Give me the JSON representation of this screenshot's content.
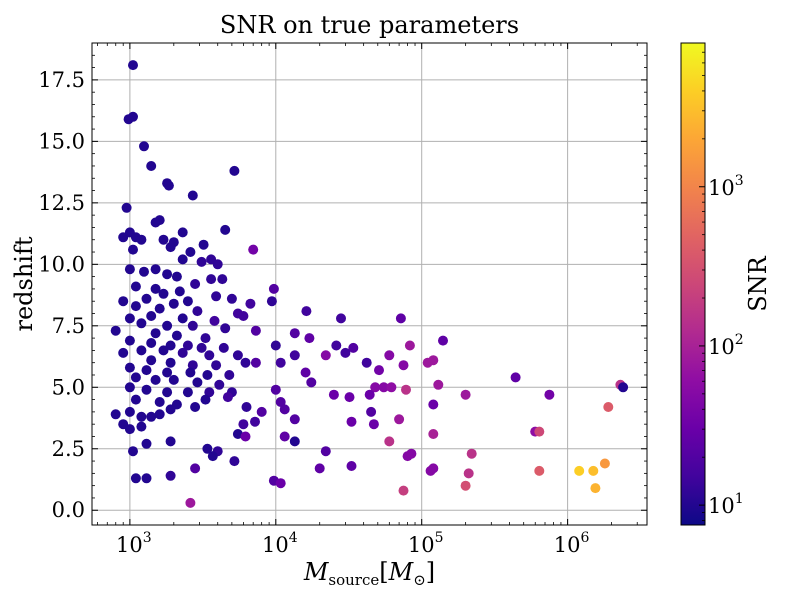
{
  "chart_data": {
    "type": "scatter",
    "title": "SNR on true parameters",
    "xlabel": {
      "base": "M",
      "subscript": "source",
      "bracket_open": "[",
      "unit_base": "M",
      "unit_subscript": "⊙",
      "bracket_close": "]"
    },
    "ylabel": "redshift",
    "x_scale": "log",
    "xlim": [
      550,
      3500000
    ],
    "ylim": [
      -0.6,
      19.0
    ],
    "x_ticks": [
      {
        "value": 1000,
        "base": "10",
        "exp": "3"
      },
      {
        "value": 10000,
        "base": "10",
        "exp": "4"
      },
      {
        "value": 100000,
        "base": "10",
        "exp": "5"
      },
      {
        "value": 1000000,
        "base": "10",
        "exp": "6"
      }
    ],
    "y_ticks": [
      {
        "value": 0,
        "label": "0.0"
      },
      {
        "value": 2.5,
        "label": "2.5"
      },
      {
        "value": 5,
        "label": "5.0"
      },
      {
        "value": 7.5,
        "label": "7.5"
      },
      {
        "value": 10,
        "label": "10.0"
      },
      {
        "value": 12.5,
        "label": "12.5"
      },
      {
        "value": 15,
        "label": "15.0"
      },
      {
        "value": 17.5,
        "label": "17.5"
      }
    ],
    "grid": true,
    "colorbar": {
      "label": "SNR",
      "scale": "log",
      "range": [
        7.5,
        8000
      ],
      "colormap": "plasma",
      "colors": [
        "#0d0887",
        "#41049d",
        "#6a00a8",
        "#8f0da4",
        "#b12a90",
        "#cc4778",
        "#e16462",
        "#f2844b",
        "#fca636",
        "#fcce25",
        "#f0f921"
      ],
      "ticks": [
        {
          "value": 10,
          "base": "10",
          "exp": "1"
        },
        {
          "value": 100,
          "base": "10",
          "exp": "2"
        },
        {
          "value": 1000,
          "base": "10",
          "exp": "3"
        }
      ]
    },
    "points": [
      [
        1050,
        18.1,
        10
      ],
      [
        1050,
        16.0,
        10
      ],
      [
        980,
        15.9,
        10
      ],
      [
        1250,
        14.8,
        10
      ],
      [
        1400,
        14.0,
        10
      ],
      [
        5200,
        13.8,
        10
      ],
      [
        1800,
        13.3,
        10
      ],
      [
        1850,
        13.2,
        10
      ],
      [
        2700,
        12.8,
        10
      ],
      [
        950,
        12.3,
        10
      ],
      [
        1600,
        11.8,
        10
      ],
      [
        1500,
        11.7,
        10
      ],
      [
        4500,
        11.4,
        10
      ],
      [
        2300,
        11.3,
        10
      ],
      [
        1000,
        11.3,
        10
      ],
      [
        1100,
        11.1,
        10
      ],
      [
        900,
        11.1,
        10
      ],
      [
        1200,
        11.0,
        10
      ],
      [
        1700,
        11.0,
        10
      ],
      [
        2000,
        10.9,
        10
      ],
      [
        3200,
        10.8,
        10
      ],
      [
        1900,
        10.7,
        10
      ],
      [
        1050,
        10.6,
        10
      ],
      [
        2600,
        10.5,
        10
      ],
      [
        7000,
        10.6,
        35
      ],
      [
        2300,
        10.2,
        10
      ],
      [
        3600,
        10.2,
        12
      ],
      [
        3100,
        10.1,
        12
      ],
      [
        4000,
        10.0,
        12
      ],
      [
        9700,
        9.0,
        20
      ],
      [
        1500,
        9.8,
        10
      ],
      [
        1000,
        9.8,
        10
      ],
      [
        1250,
        9.7,
        10
      ],
      [
        1800,
        9.6,
        10
      ],
      [
        2100,
        9.5,
        10
      ],
      [
        3600,
        9.4,
        12
      ],
      [
        4300,
        9.4,
        12
      ],
      [
        2800,
        9.2,
        12
      ],
      [
        1100,
        9.1,
        10
      ],
      [
        1500,
        9.0,
        10
      ],
      [
        2200,
        8.9,
        10
      ],
      [
        1700,
        8.8,
        10
      ],
      [
        3900,
        8.7,
        12
      ],
      [
        5000,
        8.6,
        12
      ],
      [
        1300,
        8.6,
        10
      ],
      [
        2500,
        8.5,
        10
      ],
      [
        900,
        8.5,
        10
      ],
      [
        9400,
        8.5,
        12
      ],
      [
        6700,
        8.4,
        15
      ],
      [
        2000,
        8.4,
        10
      ],
      [
        1100,
        8.3,
        10
      ],
      [
        1600,
        8.2,
        10
      ],
      [
        2900,
        8.1,
        12
      ],
      [
        5500,
        8.0,
        15
      ],
      [
        1400,
        7.9,
        10
      ],
      [
        1000,
        7.8,
        10
      ],
      [
        2300,
        7.8,
        10
      ],
      [
        3800,
        7.7,
        15
      ],
      [
        6000,
        7.9,
        15
      ],
      [
        16200,
        8.1,
        15
      ],
      [
        28000,
        7.8,
        15
      ],
      [
        72000,
        7.8,
        25
      ],
      [
        1200,
        7.6,
        10
      ],
      [
        1800,
        7.5,
        10
      ],
      [
        2700,
        7.5,
        12
      ],
      [
        4500,
        7.4,
        12
      ],
      [
        7300,
        7.3,
        20
      ],
      [
        800,
        7.3,
        10
      ],
      [
        1500,
        7.2,
        10
      ],
      [
        2100,
        7.1,
        10
      ],
      [
        3300,
        7.0,
        12
      ],
      [
        13500,
        7.2,
        20
      ],
      [
        17000,
        7.0,
        25
      ],
      [
        140000,
        6.9,
        25
      ],
      [
        1000,
        6.9,
        10
      ],
      [
        1400,
        6.8,
        10
      ],
      [
        1900,
        6.7,
        10
      ],
      [
        2500,
        6.7,
        12
      ],
      [
        3100,
        6.6,
        12
      ],
      [
        4400,
        6.6,
        12
      ],
      [
        10000,
        6.7,
        12
      ],
      [
        26000,
        6.7,
        15
      ],
      [
        34000,
        6.6,
        20
      ],
      [
        83000,
        6.7,
        80
      ],
      [
        1200,
        6.5,
        10
      ],
      [
        1700,
        6.5,
        10
      ],
      [
        2300,
        6.4,
        12
      ],
      [
        3500,
        6.3,
        12
      ],
      [
        5500,
        6.3,
        12
      ],
      [
        900,
        6.4,
        10
      ],
      [
        13500,
        6.3,
        15
      ],
      [
        30000,
        6.4,
        15
      ],
      [
        22000,
        6.3,
        50
      ],
      [
        60000,
        6.3,
        50
      ],
      [
        110000,
        6.0,
        80
      ],
      [
        120000,
        6.1,
        80
      ],
      [
        1400,
        6.1,
        10
      ],
      [
        1900,
        6.0,
        10
      ],
      [
        2700,
        5.9,
        12
      ],
      [
        3900,
        5.9,
        12
      ],
      [
        6200,
        6.0,
        12
      ],
      [
        7300,
        6.0,
        20
      ],
      [
        10800,
        6.0,
        15
      ],
      [
        42000,
        6.0,
        15
      ],
      [
        75000,
        5.9,
        50
      ],
      [
        1000,
        5.8,
        10
      ],
      [
        1300,
        5.7,
        10
      ],
      [
        1800,
        5.6,
        10
      ],
      [
        2600,
        5.6,
        10
      ],
      [
        3400,
        5.5,
        10
      ],
      [
        4800,
        5.5,
        12
      ],
      [
        16000,
        5.6,
        25
      ],
      [
        51000,
        5.7,
        35
      ],
      [
        440000,
        5.4,
        25
      ],
      [
        1500,
        5.3,
        10
      ],
      [
        1100,
        5.4,
        10
      ],
      [
        2000,
        5.3,
        10
      ],
      [
        2900,
        5.2,
        10
      ],
      [
        4100,
        5.1,
        12
      ],
      [
        17500,
        5.2,
        20
      ],
      [
        48000,
        5.0,
        50
      ],
      [
        55000,
        5.0,
        50
      ],
      [
        62000,
        5.0,
        60
      ],
      [
        130000,
        5.1,
        80
      ],
      [
        2300000,
        5.1,
        150
      ],
      [
        2400000,
        5.0,
        10
      ],
      [
        1000,
        5.0,
        10
      ],
      [
        1300,
        4.9,
        10
      ],
      [
        1800,
        4.8,
        10
      ],
      [
        2500,
        4.8,
        10
      ],
      [
        3500,
        4.8,
        12
      ],
      [
        5000,
        4.8,
        12
      ],
      [
        10000,
        4.9,
        20
      ],
      [
        25000,
        4.7,
        30
      ],
      [
        32000,
        4.6,
        30
      ],
      [
        44000,
        4.7,
        30
      ],
      [
        78000,
        4.9,
        150
      ],
      [
        200000,
        4.7,
        80
      ],
      [
        750000,
        4.7,
        35
      ],
      [
        1900000,
        4.2,
        400
      ],
      [
        1100,
        4.5,
        10
      ],
      [
        1600,
        4.4,
        10
      ],
      [
        2100,
        4.3,
        10
      ],
      [
        3300,
        4.5,
        10
      ],
      [
        4700,
        4.6,
        15
      ],
      [
        10800,
        4.4,
        20
      ],
      [
        1900,
        4.1,
        10
      ],
      [
        2800,
        4.2,
        10
      ],
      [
        6300,
        4.2,
        12
      ],
      [
        8000,
        4.0,
        20
      ],
      [
        11500,
        4.1,
        20
      ],
      [
        45000,
        4.0,
        20
      ],
      [
        120000,
        4.3,
        30
      ],
      [
        800,
        3.9,
        10
      ],
      [
        1000,
        4.0,
        10
      ],
      [
        1200,
        3.8,
        10
      ],
      [
        1400,
        3.8,
        10
      ],
      [
        1600,
        3.9,
        10
      ],
      [
        1200,
        3.4,
        10
      ],
      [
        900,
        3.5,
        10
      ],
      [
        1000,
        3.3,
        10
      ],
      [
        6000,
        3.5,
        15
      ],
      [
        7200,
        3.6,
        15
      ],
      [
        13500,
        3.7,
        20
      ],
      [
        33000,
        3.6,
        30
      ],
      [
        47000,
        3.5,
        30
      ],
      [
        70000,
        3.7,
        80
      ],
      [
        600000,
        3.2,
        60
      ],
      [
        640000,
        3.2,
        250
      ],
      [
        5500,
        3.1,
        10
      ],
      [
        6200,
        3.0,
        30
      ],
      [
        11500,
        3.0,
        25
      ],
      [
        1300,
        2.7,
        10
      ],
      [
        1900,
        2.8,
        10
      ],
      [
        13500,
        2.8,
        10
      ],
      [
        60000,
        2.8,
        150
      ],
      [
        3400,
        2.5,
        10
      ],
      [
        4000,
        2.4,
        12
      ],
      [
        22000,
        2.4,
        20
      ],
      [
        120000,
        3.1,
        100
      ],
      [
        1050,
        2.4,
        10
      ],
      [
        3700,
        2.2,
        10
      ],
      [
        80000,
        2.2,
        50
      ],
      [
        85000,
        2.3,
        50
      ],
      [
        220000,
        2.3,
        150
      ],
      [
        5200,
        2.0,
        12
      ],
      [
        2800,
        1.7,
        20
      ],
      [
        20000,
        1.7,
        25
      ],
      [
        33000,
        1.8,
        25
      ],
      [
        115000,
        1.6,
        50
      ],
      [
        120000,
        1.7,
        50
      ],
      [
        210000,
        1.5,
        150
      ],
      [
        640000,
        1.6,
        400
      ],
      [
        1200000,
        1.6,
        4000
      ],
      [
        1500000,
        1.6,
        3000
      ],
      [
        1800000,
        1.9,
        1500
      ],
      [
        1100,
        1.3,
        10
      ],
      [
        1300,
        1.3,
        10
      ],
      [
        1900,
        1.4,
        12
      ],
      [
        9700,
        1.2,
        20
      ],
      [
        10800,
        1.1,
        30
      ],
      [
        200000,
        1.0,
        300
      ],
      [
        75000,
        0.8,
        200
      ],
      [
        1550000,
        0.9,
        2500
      ],
      [
        2600,
        0.3,
        80
      ]
    ]
  }
}
